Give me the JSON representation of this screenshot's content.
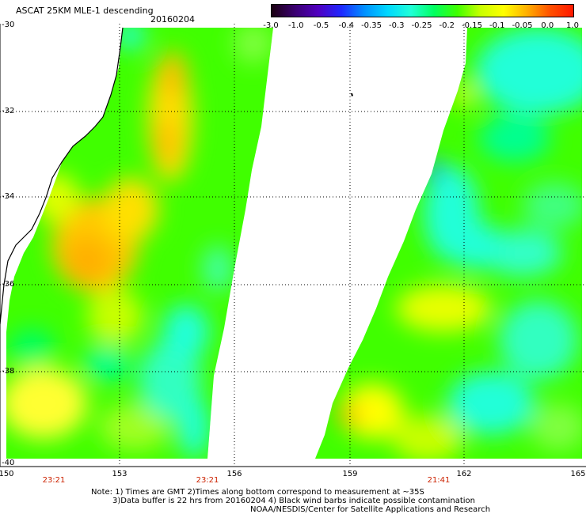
{
  "title": "ASCAT 25KM MLE-1 descending",
  "date": "20160204",
  "colorbar": {
    "labels": [
      "-3.0",
      "-1.0",
      "-0.5",
      "-0.4",
      "-0.35",
      "-0.3",
      "-0.25",
      "-0.2",
      "-0.15",
      "-0.1",
      "-0.05",
      "0.0",
      "1.0"
    ],
    "colors": [
      "#1a0010",
      "#3a0070",
      "#5000c0",
      "#1f28ff",
      "#0090ff",
      "#00d8ff",
      "#20ffd8",
      "#00ff60",
      "#40ff00",
      "#c8ff00",
      "#ffff00",
      "#ffb000",
      "#ff5000",
      "#ff1800"
    ]
  },
  "map": {
    "lon_range": [
      150,
      165
    ],
    "lat_range": [
      -30,
      -40
    ],
    "lat_labels": [
      "-30",
      "-32",
      "-34",
      "-36",
      "-38",
      "-40"
    ],
    "lon_labels": [
      "150",
      "153",
      "156",
      "159",
      "162",
      "165"
    ],
    "time_labels": [
      {
        "text": "23:21",
        "lon": 151.25
      },
      {
        "text": "23:21",
        "lon": 155.25
      },
      {
        "text": "21:41",
        "lon": 161.3
      }
    ],
    "land_color": "#000000",
    "no_data_color": "#ffffff"
  },
  "note": [
    "Note: 1) Times are GMT 2)Times along bottom correspond to measurement at ~35S",
    "3)Data buffer is 22 hrs from 20160204 4) Black wind barbs indicate possible contamination",
    "NOAA/NESDIS/Center for Satellite Applications and Research"
  ]
}
